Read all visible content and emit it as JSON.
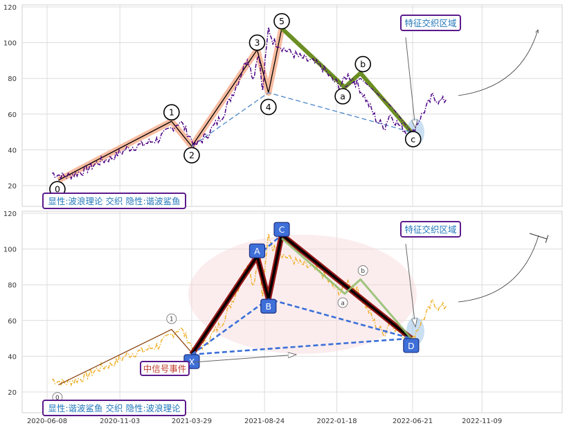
{
  "chart_data": [
    {
      "type": "line",
      "panel": "top",
      "ylim": [
        10,
        122
      ],
      "yticks": [
        20,
        40,
        60,
        80,
        100,
        120
      ],
      "grid": true,
      "series": [
        {
          "style": "dash-dot",
          "color": "#4b0082",
          "x": [
            "2020-06-18",
            "2020-07-15",
            "2020-08-20",
            "2020-09-20",
            "2020-10-20",
            "2020-11-20",
            "2020-12-20",
            "2021-01-20",
            "2021-02-20",
            "2021-03-05",
            "2021-03-20",
            "2021-04-05",
            "2021-05-01",
            "2021-06-01",
            "2021-07-01",
            "2021-07-20",
            "2021-08-01",
            "2021-08-12",
            "2021-08-20",
            "2021-08-25",
            "2021-09-01",
            "2021-09-10",
            "2021-09-22",
            "2021-10-05",
            "2021-10-20",
            "2021-11-10",
            "2021-12-01",
            "2021-12-20",
            "2022-01-10",
            "2022-01-25",
            "2022-02-10",
            "2022-02-28",
            "2022-03-15",
            "2022-03-30",
            "2022-04-10",
            "2022-04-26",
            "2022-05-05",
            "2022-05-20",
            "2022-06-05",
            "2022-06-17",
            "2022-06-28",
            "2022-07-15",
            "2022-08-01",
            "2022-08-15",
            "2022-08-28"
          ],
          "values": [
            27,
            25,
            28,
            33,
            36,
            41,
            43,
            46,
            53,
            56,
            50,
            42,
            49,
            60,
            78,
            92,
            80,
            95,
            72,
            88,
            108,
            101,
            99,
            96,
            94,
            91,
            89,
            86,
            79,
            76,
            82,
            77,
            70,
            62,
            56,
            53,
            60,
            55,
            51,
            46,
            54,
            62,
            70,
            67,
            68
          ]
        }
      ],
      "overlays": [
        {
          "name": "elliott-impulse-path",
          "color": "#000000",
          "highlight": "#f4a582",
          "x": [
            "2020-07-01",
            "2021-02-16",
            "2021-03-29",
            "2021-08-09",
            "2021-09-01",
            "2021-09-28"
          ],
          "values": [
            23,
            56,
            42,
            96,
            72,
            108
          ]
        },
        {
          "name": "elliott-correction-path",
          "color": "#6b8e23",
          "x": [
            "2021-09-28",
            "2022-02-03",
            "2022-03-07",
            "2022-06-18"
          ],
          "values": [
            108,
            75,
            83,
            50
          ]
        },
        {
          "name": "wave-2-4-trendline",
          "style": "dashed",
          "color": "#4a86c8",
          "x": [
            "2021-03-29",
            "2021-09-01",
            "2022-06-18"
          ],
          "values": [
            42,
            72,
            50
          ]
        },
        {
          "name": "correction-dashdot",
          "style": "dash-dot",
          "color": "#4b0082",
          "x": [
            "2022-02-03",
            "2022-03-07",
            "2022-05-10",
            "2022-06-18"
          ],
          "values": [
            75,
            80,
            64,
            50
          ]
        }
      ],
      "wave_labels": [
        {
          "text": "0",
          "x": "2020-06-29",
          "y": 18
        },
        {
          "text": "1",
          "x": "2021-02-16",
          "y": 61
        },
        {
          "text": "2",
          "x": "2021-03-29",
          "y": 37
        },
        {
          "text": "3",
          "x": "2021-08-09",
          "y": 100
        },
        {
          "text": "4",
          "x": "2021-09-01",
          "y": 64
        },
        {
          "text": "5",
          "x": "2021-09-28",
          "y": 112
        },
        {
          "text": "a",
          "x": "2022-01-30",
          "y": 70
        },
        {
          "text": "b",
          "x": "2022-03-12",
          "y": 88
        },
        {
          "text": "c",
          "x": "2022-06-22",
          "y": 46
        }
      ],
      "annotations": {
        "feature_box": "特征交织区域",
        "legend_box": "显性:波浪理论 交织 隐性:谐波鲨鱼"
      }
    },
    {
      "type": "line",
      "panel": "bottom",
      "ylim": [
        10,
        122
      ],
      "yticks": [
        20,
        40,
        60,
        80,
        100,
        120
      ],
      "xticks": [
        "2020-06-08",
        "2020-11-03",
        "2021-03-29",
        "2021-08-24",
        "2022-01-18",
        "2022-06-21",
        "2022-11-09"
      ],
      "grid": true,
      "series": [
        {
          "style": "dash-dot",
          "color": "#f0b330",
          "x": [
            "2020-06-18",
            "2020-07-15",
            "2020-08-20",
            "2020-09-20",
            "2020-10-20",
            "2020-11-20",
            "2020-12-20",
            "2021-01-20",
            "2021-02-20",
            "2021-03-05",
            "2021-03-20",
            "2021-04-05",
            "2021-05-01",
            "2021-06-01",
            "2021-07-01",
            "2021-07-20",
            "2021-08-01",
            "2021-08-12",
            "2021-08-20",
            "2021-08-25",
            "2021-09-01",
            "2021-09-10",
            "2021-09-22",
            "2021-10-05",
            "2021-10-20",
            "2021-11-10",
            "2021-12-01",
            "2021-12-20",
            "2022-01-10",
            "2022-01-25",
            "2022-02-10",
            "2022-02-28",
            "2022-03-15",
            "2022-03-30",
            "2022-04-10",
            "2022-04-26",
            "2022-05-05",
            "2022-05-20",
            "2022-06-05",
            "2022-06-17",
            "2022-06-28",
            "2022-07-15",
            "2022-08-01",
            "2022-08-15",
            "2022-08-28"
          ],
          "values": [
            27,
            25,
            28,
            33,
            36,
            41,
            43,
            46,
            53,
            56,
            50,
            42,
            49,
            60,
            78,
            92,
            80,
            95,
            72,
            88,
            108,
            101,
            99,
            96,
            94,
            91,
            89,
            86,
            79,
            76,
            82,
            77,
            70,
            62,
            56,
            53,
            60,
            55,
            51,
            46,
            54,
            62,
            70,
            67,
            68
          ]
        }
      ],
      "overlays": [
        {
          "name": "elliott-thin-path",
          "color": "#8b4513",
          "x": [
            "2020-07-01",
            "2021-02-16",
            "2021-03-29"
          ],
          "values": [
            24,
            55,
            42
          ]
        },
        {
          "name": "harmonic-xabcd",
          "color": "#000000",
          "highlight": "#8b0000",
          "x": [
            "2021-03-29",
            "2021-08-09",
            "2021-09-01",
            "2021-09-28",
            "2022-06-18"
          ],
          "values": [
            41,
            96,
            72,
            108,
            50
          ]
        },
        {
          "name": "xb-dashed",
          "style": "dashed",
          "color": "#3a6fd8",
          "x": [
            "2021-03-29",
            "2021-09-01",
            "2022-06-18"
          ],
          "values": [
            41,
            72,
            50
          ]
        },
        {
          "name": "xd-dashed",
          "style": "dashed",
          "color": "#3a6fd8",
          "x": [
            "2021-03-29",
            "2022-06-18"
          ],
          "values": [
            41,
            50
          ]
        },
        {
          "name": "ac-dashed",
          "style": "dashed",
          "color": "#3a6fd8",
          "x": [
            "2021-08-09",
            "2021-09-28"
          ],
          "values": [
            96,
            108
          ]
        },
        {
          "name": "correction-green",
          "color": "#8fbc6a",
          "x": [
            "2021-09-28",
            "2022-02-03",
            "2022-03-07",
            "2022-06-18"
          ],
          "values": [
            106,
            75,
            83,
            50
          ]
        }
      ],
      "point_labels": [
        {
          "text": "X",
          "x": "2021-03-29",
          "y": 37
        },
        {
          "text": "A",
          "x": "2021-08-09",
          "y": 99
        },
        {
          "text": "B",
          "x": "2021-09-01",
          "y": 68
        },
        {
          "text": "C",
          "x": "2021-09-28",
          "y": 111
        },
        {
          "text": "D",
          "x": "2022-06-18",
          "y": 46
        }
      ],
      "minor_labels": [
        {
          "text": "0",
          "x": "2020-06-29",
          "y": 17
        },
        {
          "text": "1",
          "x": "2021-02-16",
          "y": 61
        },
        {
          "text": "a",
          "x": "2022-01-30",
          "y": 70
        },
        {
          "text": "b",
          "x": "2022-03-12",
          "y": 88
        }
      ],
      "annotations": {
        "feature_box": "特征交织区域",
        "signal_box": "中信号事件",
        "legend_box": "显性:谐波鲨鱼 交织 隐性:波浪理论"
      }
    }
  ]
}
